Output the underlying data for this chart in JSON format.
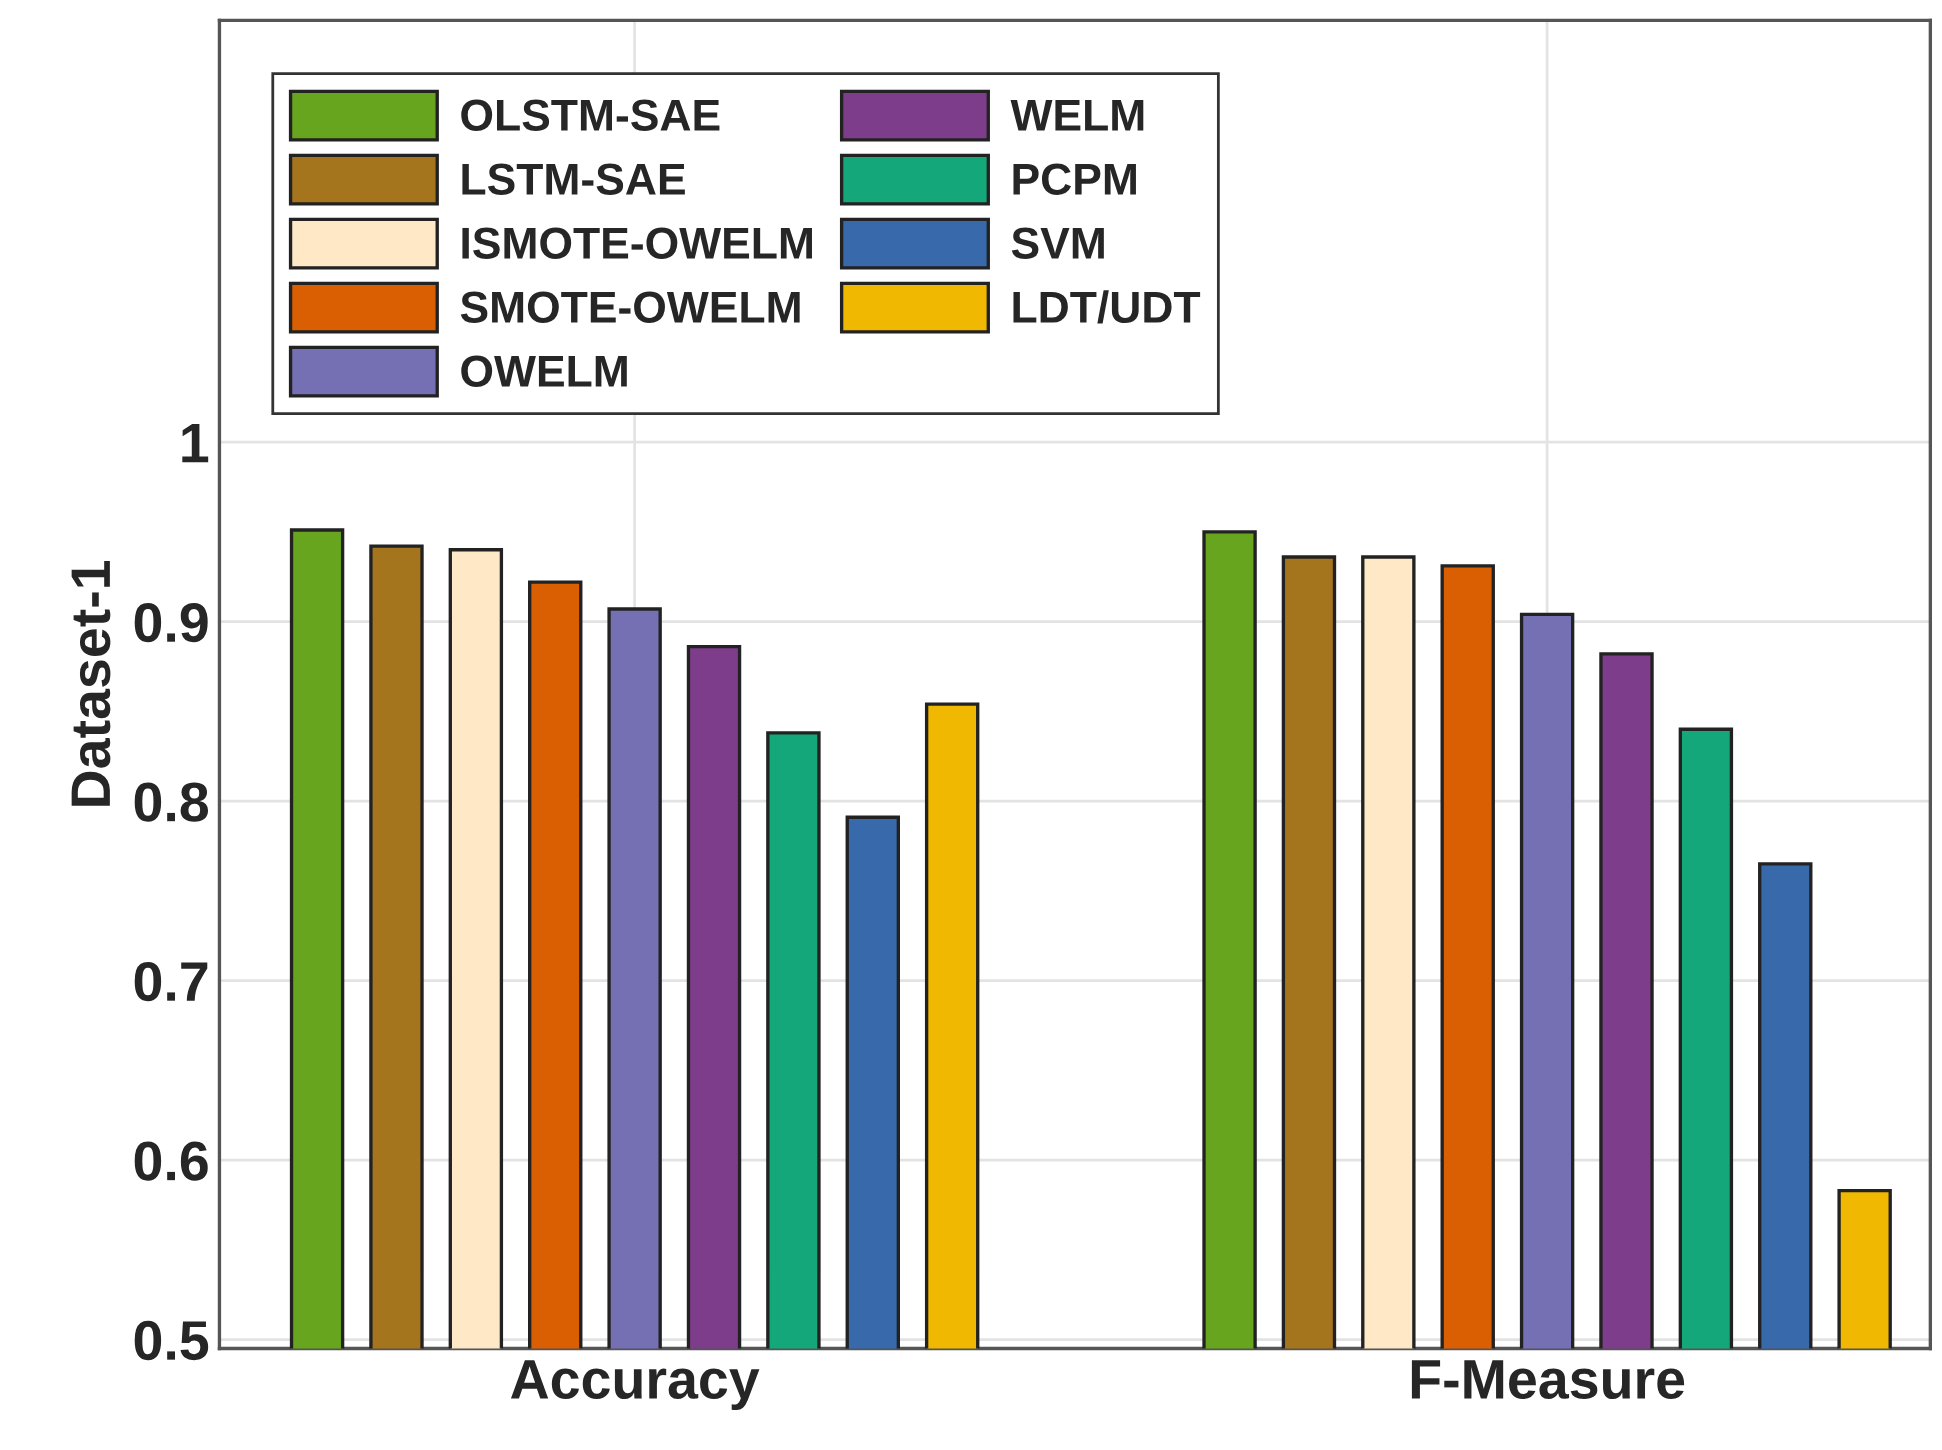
{
  "chart_data": {
    "type": "bar",
    "ylabel": "Dataset-1",
    "categories": [
      "Accuracy",
      "F-Measure"
    ],
    "series": [
      {
        "name": "OLSTM-SAE",
        "color": "#67a51f",
        "values": [
          0.951,
          0.95
        ]
      },
      {
        "name": "LSTM-SAE",
        "color": "#a5751d",
        "values": [
          0.942,
          0.936
        ]
      },
      {
        "name": "ISMOTE-OWELM",
        "color": "#fee8c6",
        "values": [
          0.94,
          0.936
        ]
      },
      {
        "name": "SMOTE-OWELM",
        "color": "#d95f02",
        "values": [
          0.922,
          0.931
        ]
      },
      {
        "name": "OWELM",
        "color": "#7570b3",
        "values": [
          0.907,
          0.904
        ]
      },
      {
        "name": "WELM",
        "color": "#7e3d8a",
        "values": [
          0.886,
          0.882
        ]
      },
      {
        "name": "PCPM",
        "color": "#14a77a",
        "values": [
          0.838,
          0.84
        ]
      },
      {
        "name": "SVM",
        "color": "#386aab",
        "values": [
          0.791,
          0.765
        ]
      },
      {
        "name": "LDT/UDT",
        "color": "#f0b800",
        "values": [
          0.854,
          0.583
        ]
      }
    ],
    "ylim": [
      0.495,
      1.235
    ],
    "yticks": [
      0.5,
      0.6,
      0.7,
      0.8,
      0.9,
      1
    ],
    "grid": true,
    "legend": "top left"
  }
}
